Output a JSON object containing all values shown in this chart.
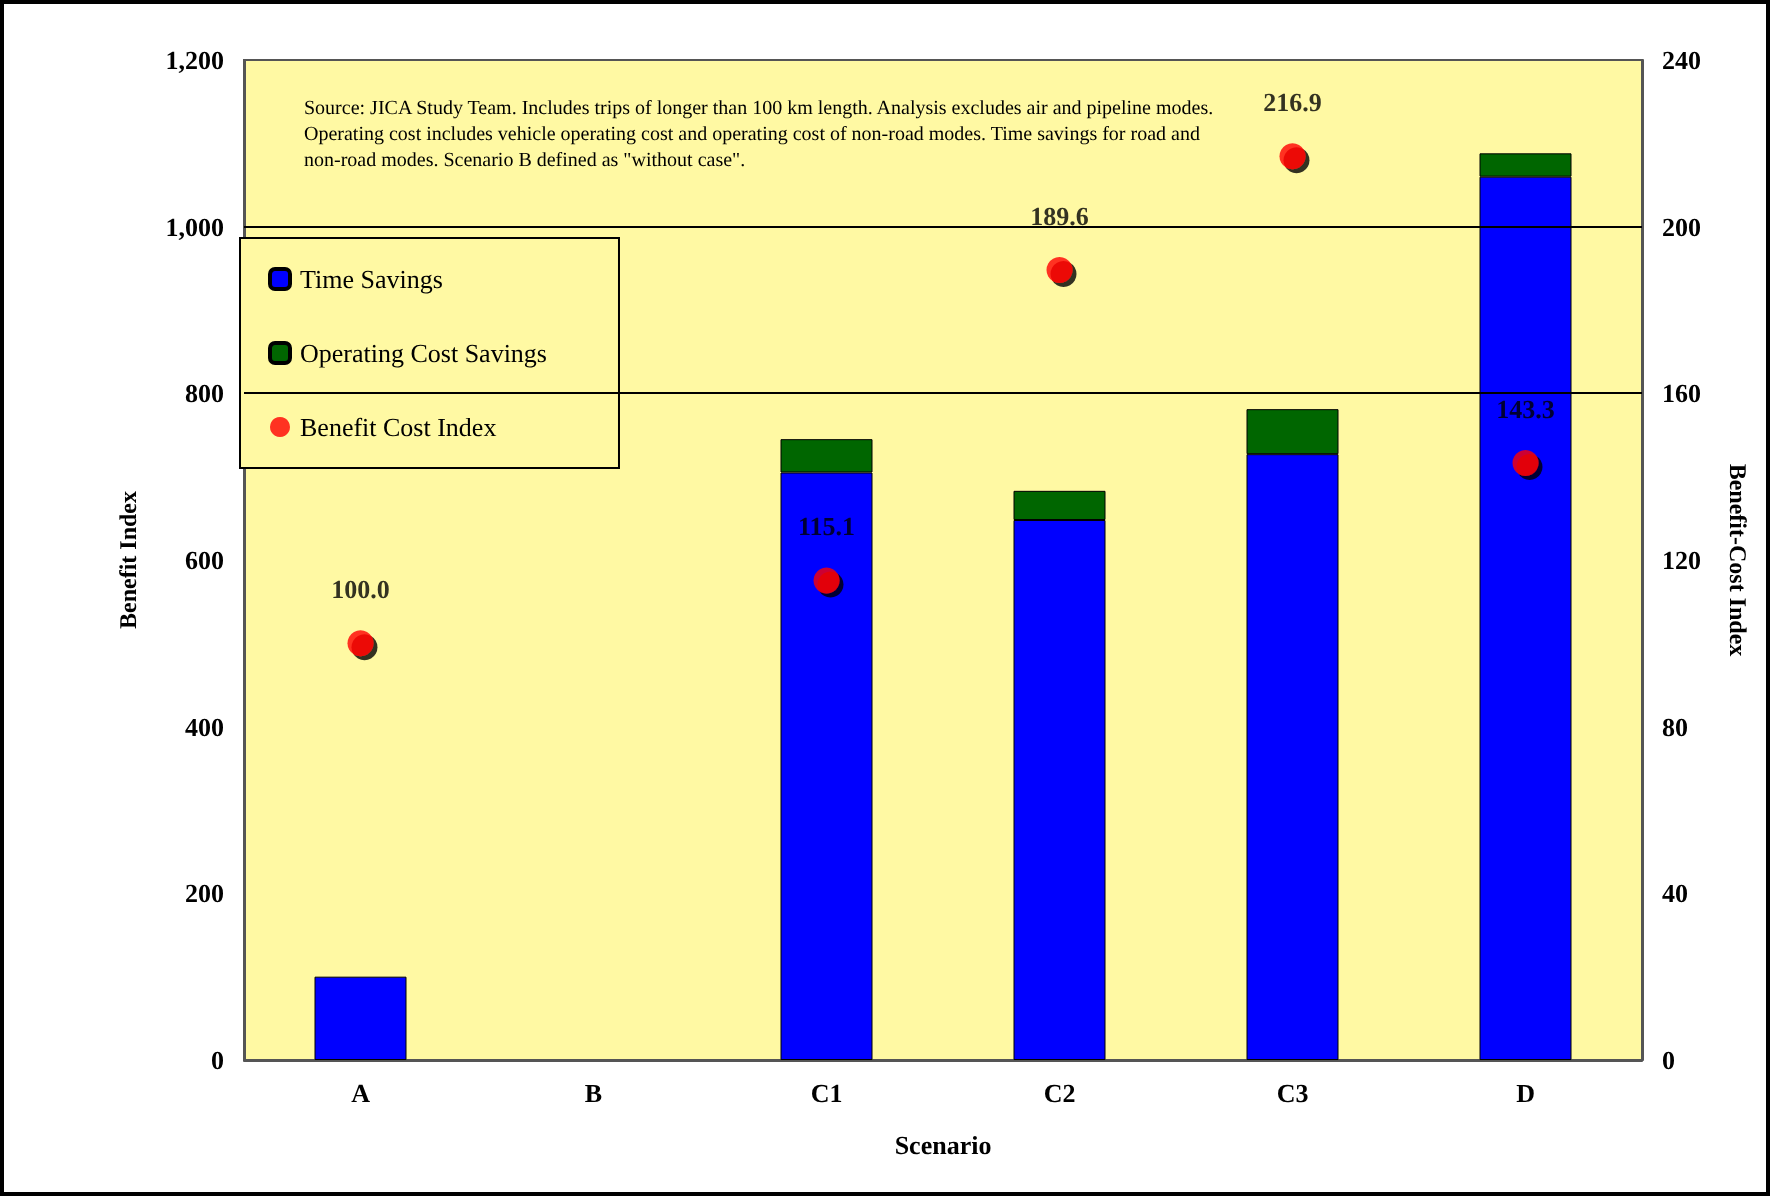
{
  "chart_data": {
    "type": "bar",
    "stacked": true,
    "xlabel": "Scenario",
    "ylabel": "Benefit Index",
    "y2label": "Benefit-Cost Index",
    "categories": [
      "A",
      "B",
      "C1",
      "C2",
      "C3",
      "D"
    ],
    "series": [
      {
        "name": "Time Savings",
        "color": "#0000ff",
        "values": [
          100,
          null,
          705,
          648,
          727,
          1060
        ]
      },
      {
        "name": "Operating Cost Savings",
        "color": "#006600",
        "values": [
          null,
          null,
          40,
          35,
          54,
          28
        ]
      },
      {
        "name": "Benefit Cost Index",
        "type": "scatter",
        "axis": "y2",
        "color": "#ff0000",
        "values": [
          100.0,
          null,
          115.1,
          189.6,
          216.9,
          143.3
        ],
        "value_labels": [
          "100.0",
          null,
          "115.1",
          "189.6",
          "216.9",
          "143.3"
        ]
      }
    ],
    "ylim": [
      0,
      1200
    ],
    "yticks": [
      0,
      200,
      400,
      600,
      800,
      {
        "value": 1000,
        "label": "1,000"
      },
      {
        "value": 1200,
        "label": "1,200"
      }
    ],
    "y2lim": [
      0,
      240
    ],
    "y2ticks": [
      0,
      40,
      80,
      120,
      160,
      200,
      240
    ],
    "ref_lines": [
      {
        "axis": "y",
        "value": 800
      },
      {
        "axis": "y",
        "value": 1000
      }
    ],
    "legend": "top left",
    "marker": "circle",
    "annotations": [
      "Source: JICA Study Team. Includes trips of longer than 100 km length. Analysis excludes air and pipeline modes. Operating cost includes vehicle operating cost and operating cost of non-road modes. Time savings for road and non-road modes. Scenario B defined as \"without case\"."
    ]
  }
}
